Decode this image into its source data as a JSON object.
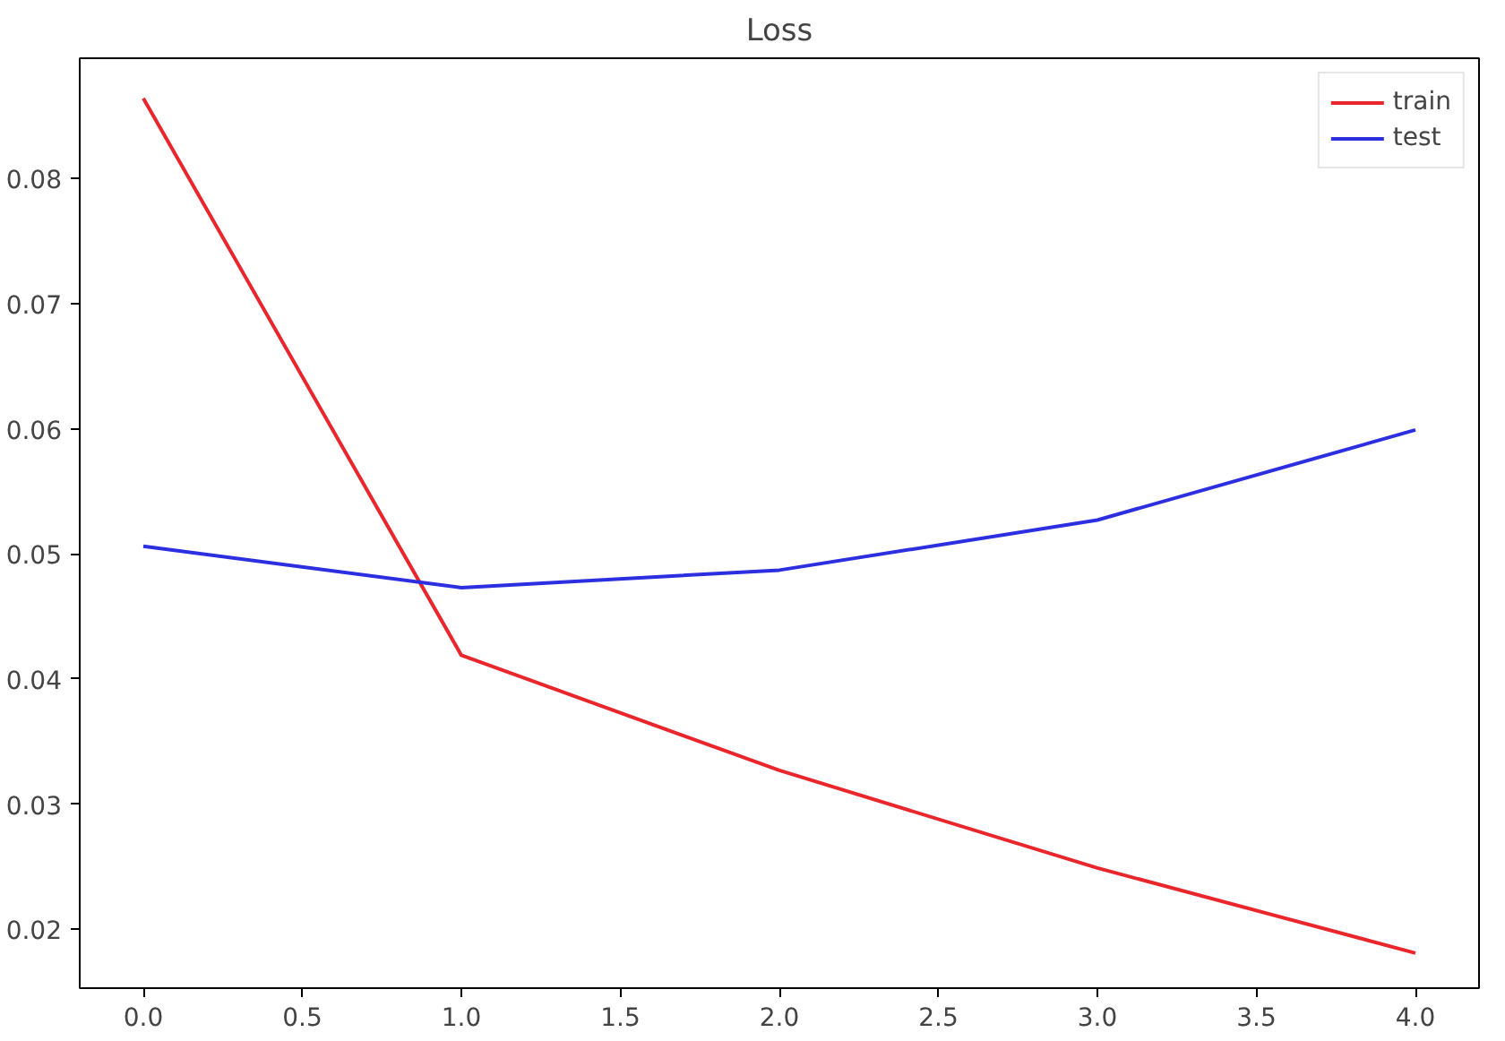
{
  "chart_data": {
    "type": "line",
    "title": "Loss",
    "x": [
      0,
      1,
      2,
      3,
      4
    ],
    "series": [
      {
        "name": "train",
        "color": "#e8262b",
        "values": [
          0.0864,
          0.0419,
          0.0327,
          0.0249,
          0.0181
        ]
      },
      {
        "name": "test",
        "color": "#2b2fe0",
        "values": [
          0.0506,
          0.0473,
          0.0487,
          0.0527,
          0.0599
        ]
      }
    ],
    "xlim": [
      -0.2,
      4.2
    ],
    "xticks": [
      {
        "value": 0,
        "label": "0.0"
      },
      {
        "value": 0.5,
        "label": "0.5"
      },
      {
        "value": 1,
        "label": "1.0"
      },
      {
        "value": 1.5,
        "label": "1.5"
      },
      {
        "value": 2,
        "label": "2.0"
      },
      {
        "value": 2.5,
        "label": "2.5"
      },
      {
        "value": 3,
        "label": "3.0"
      },
      {
        "value": 3.5,
        "label": "3.5"
      },
      {
        "value": 4,
        "label": "4.0"
      }
    ],
    "ylim": [
      0.0153,
      0.0896
    ],
    "yticks": [
      0.02,
      0.03,
      0.04,
      0.05,
      0.06,
      0.07,
      0.08
    ],
    "legend": "top right",
    "grid": false
  }
}
